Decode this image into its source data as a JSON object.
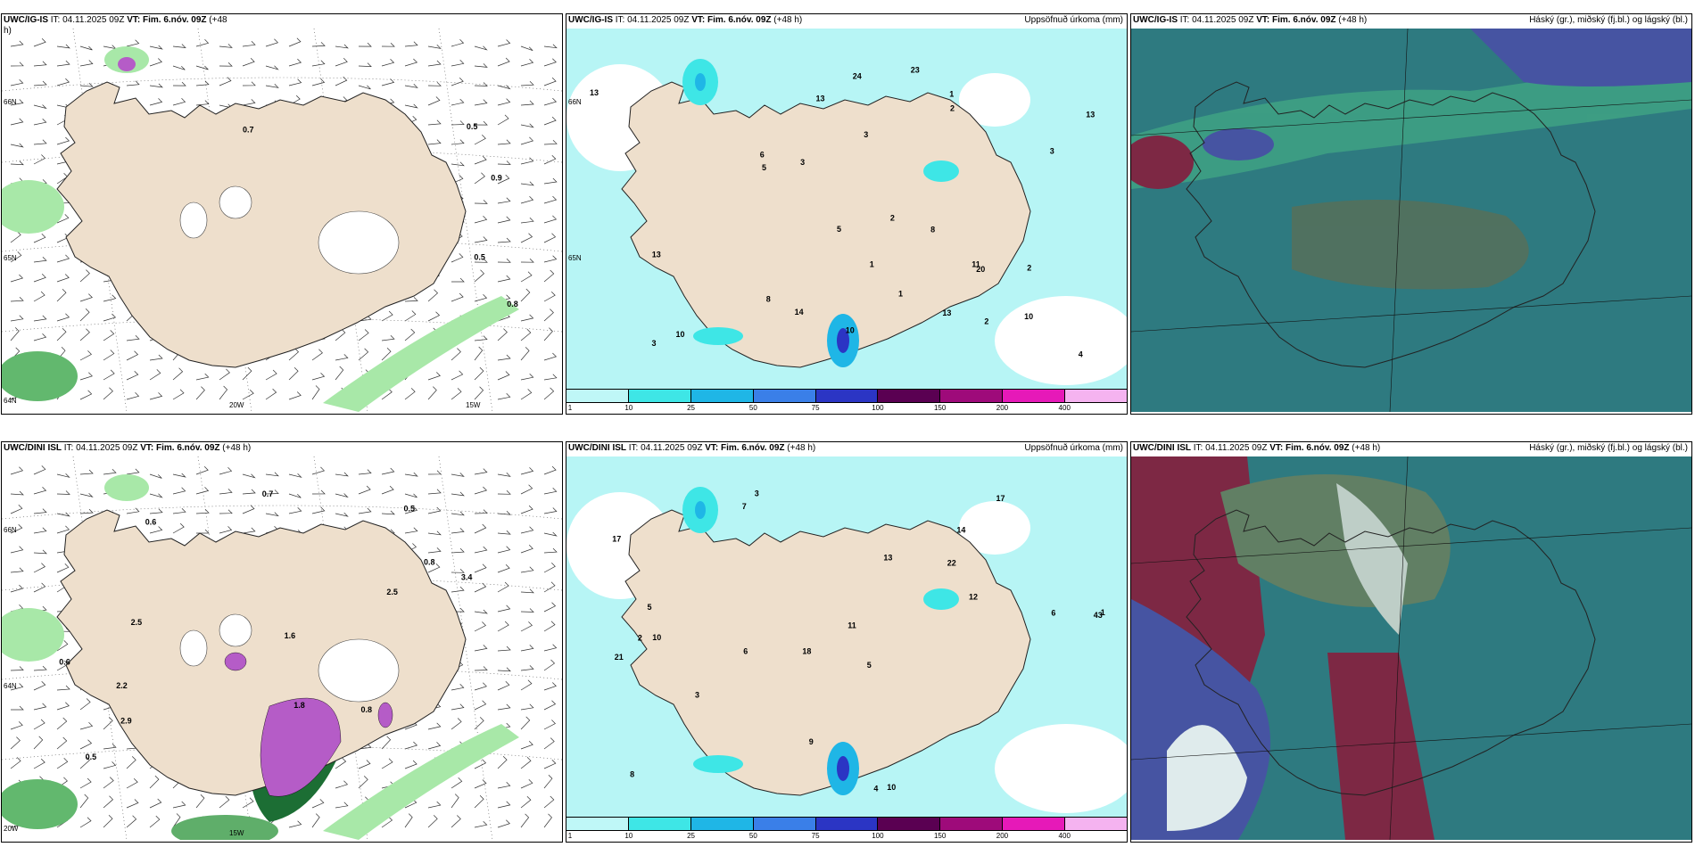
{
  "panels": [
    {
      "id": "p1",
      "source": "UWC/IG-IS",
      "it": "IT: 04.11.2025 09Z",
      "vt": "VT: Fim. 6.nóv. 09Z",
      "lead": "(+48",
      "lead2": "h)",
      "right": "",
      "type": "snow",
      "labels": [
        "0.8",
        "0.5",
        "0.5",
        "0.9",
        "0.7"
      ],
      "grid": [
        "66N",
        "65N",
        "64N",
        "20W",
        "15W"
      ]
    },
    {
      "id": "p2",
      "source": "UWC/IG-IS",
      "it": "IT: 04.11.2025 09Z",
      "vt": "VT: Fim. 6.nóv. 09Z",
      "lead": "(+48 h)",
      "right": "Uppsöfnuð úrkoma (mm)",
      "type": "precip",
      "labels": [
        "3",
        "2",
        "2",
        "1",
        "13",
        "23",
        "10",
        "1",
        "2",
        "8",
        "4",
        "5",
        "14",
        "24",
        "13",
        "6",
        "11",
        "13",
        "5",
        "13",
        "13",
        "10",
        "10",
        "8",
        "20",
        "2",
        "3",
        "3",
        "3",
        "1"
      ],
      "grid": [
        "66N",
        "65N"
      ]
    },
    {
      "id": "p3",
      "source": "UWC/IG-IS",
      "it": "IT: 04.11.2025 09Z",
      "vt": "VT: Fim. 6.nóv. 09Z",
      "lead": "(+48 h)",
      "right": "Háský (gr.), miðský (fj.bl.) og lágský (bl.)",
      "type": "cloud",
      "labels": [],
      "grid": []
    },
    {
      "id": "p4",
      "source": "UWC/DINI ISL",
      "it": "IT: 04.11.2025 09Z",
      "vt": "VT: Fim. 6.nóv. 09Z",
      "lead": "(+48 h)",
      "right": "",
      "type": "snow",
      "labels": [
        "0.5",
        "0.5",
        "0.6",
        "0.8",
        "1.8",
        "2.5",
        "2.2",
        "2.9",
        "3.4",
        "2.5",
        "0.6",
        "0.7",
        "0.8",
        "1.6"
      ],
      "grid": [
        "66N",
        "64N",
        "20W",
        "15W"
      ]
    },
    {
      "id": "p5",
      "source": "UWC/DINI ISL",
      "it": "IT: 04.11.2025 09Z",
      "vt": "VT: Fim. 6.nóv. 09Z",
      "lead": "(+48 h)",
      "right": "Uppsöfnuð úrkoma (mm)",
      "type": "precip",
      "labels": [
        "3",
        "14",
        "43",
        "18",
        "5",
        "10",
        "17",
        "22",
        "21",
        "13",
        "11",
        "8",
        "7",
        "6",
        "4",
        "10",
        "9",
        "17",
        "12",
        "3",
        "5",
        "2",
        "1",
        "6"
      ],
      "grid": []
    },
    {
      "id": "p6",
      "source": "UWC/DINI ISL",
      "it": "IT: 04.11.2025 09Z",
      "vt": "VT: Fim. 6.nóv. 09Z",
      "lead": "(+48 h)",
      "right": "Háský (gr.), miðský (fj.bl.) og lágský (bl.)",
      "type": "cloud",
      "labels": [],
      "grid": []
    }
  ],
  "colorbar": {
    "colors": [
      "#bff7f7",
      "#3ee6e6",
      "#1fb6e6",
      "#3a7fe8",
      "#2b35c4",
      "#5a0052",
      "#9e0a7a",
      "#e619b8",
      "#f5b3f0"
    ],
    "ticks": [
      "1",
      "10",
      "25",
      "50",
      "75",
      "100",
      "150",
      "200",
      "400"
    ]
  },
  "colors": {
    "land": "#eedfcc",
    "precipLight": "#b7f5f5",
    "snowGreen": "#a8e8a8",
    "snowDark": "#1c6e34",
    "snowPurple": "#b55cc7",
    "cloudTeal": "#2e7a80",
    "cloudGreen": "#3fa384",
    "cloudBlue": "#4b4ea8",
    "cloudRed": "#8b1a3a"
  }
}
